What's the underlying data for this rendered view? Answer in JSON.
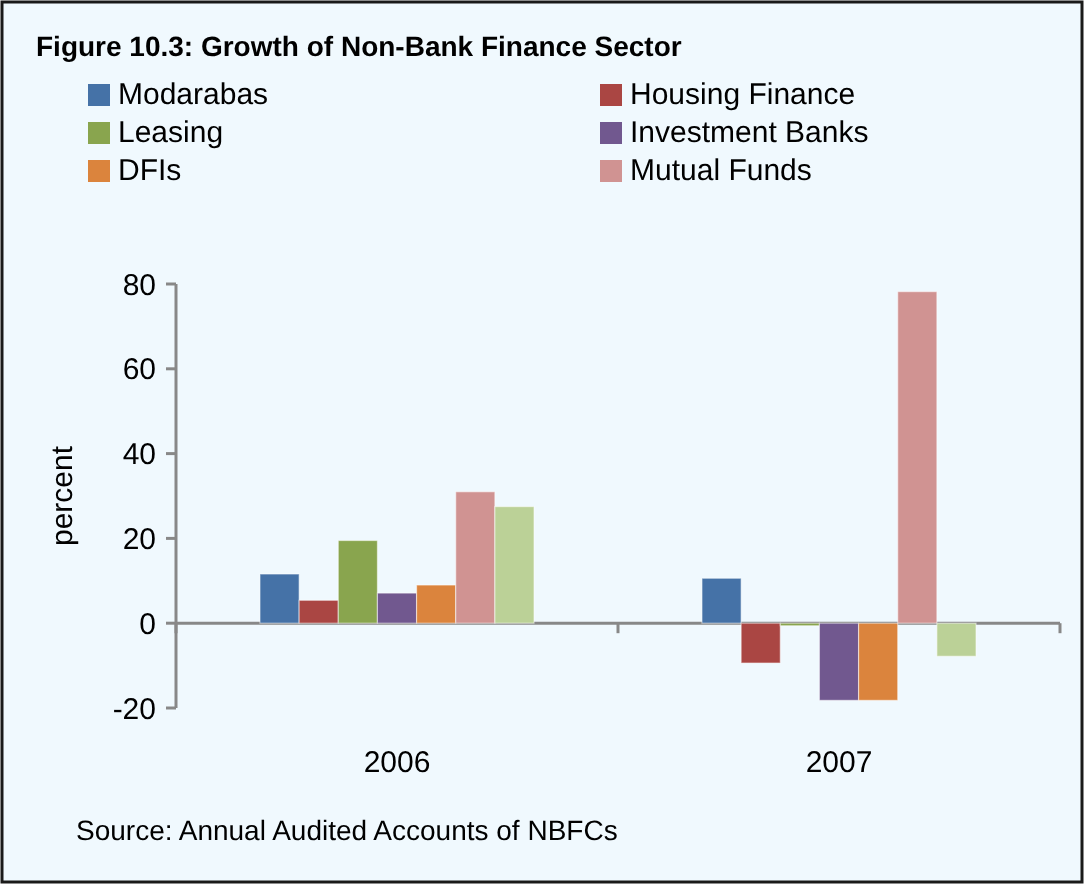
{
  "chart_data": {
    "type": "bar",
    "title": "Figure 10.3: Growth of Non-Bank Finance Sector",
    "ylabel": "percent",
    "categories": [
      "2006",
      "2007"
    ],
    "series": [
      {
        "name": "Modarabas",
        "color": "#4572a7",
        "values": [
          11.6,
          10.6
        ]
      },
      {
        "name": "Housing Finance",
        "color": "#aa4643",
        "values": [
          5.4,
          -9.4
        ]
      },
      {
        "name": "Leasing",
        "color": "#89a54e",
        "values": [
          19.5,
          -0.6
        ]
      },
      {
        "name": "Investment Banks",
        "color": "#71588f",
        "values": [
          7.1,
          -18.2
        ]
      },
      {
        "name": "DFIs",
        "color": "#db843d",
        "values": [
          9.0,
          -18.2
        ]
      },
      {
        "name": "Mutual Funds",
        "color": "#d09392",
        "values": [
          31,
          78.2
        ]
      },
      {
        "color": "#bbd197",
        "values": [
          27.5,
          -7.8
        ]
      }
    ],
    "ylim": [
      -20,
      80
    ],
    "yticks": [
      -20,
      0,
      20,
      40,
      60,
      80
    ],
    "legend": "top",
    "annotations": [
      "Source: Annual Audited Accounts of NBFCs"
    ]
  }
}
